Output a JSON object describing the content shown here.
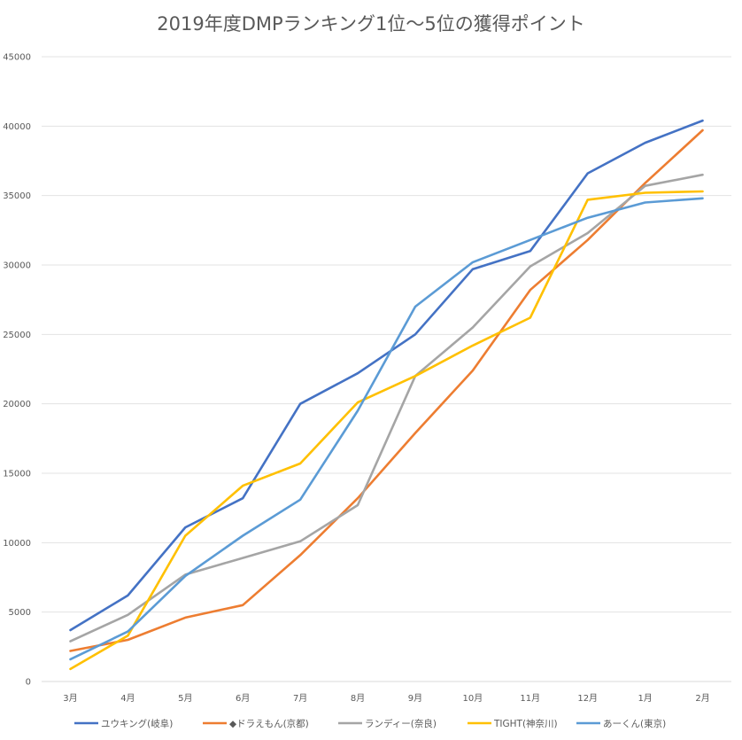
{
  "chart_data": {
    "type": "line",
    "title": "2019年度DMPランキング1位〜5位の獲得ポイント",
    "xlabel": "",
    "ylabel": "",
    "categories": [
      "3月",
      "4月",
      "5月",
      "6月",
      "7月",
      "8月",
      "9月",
      "10月",
      "11月",
      "12月",
      "1月",
      "2月"
    ],
    "ylim": [
      0,
      45000
    ],
    "yticks": [
      "0",
      "5000",
      "10000",
      "15000",
      "20000",
      "25000",
      "30000",
      "35000",
      "40000",
      "45000"
    ],
    "grid": true,
    "legend_position": "bottom",
    "series": [
      {
        "name": "ユウキング(岐阜)",
        "color": "#4472C4",
        "values": [
          3700,
          6200,
          11100,
          13200,
          20000,
          22200,
          25000,
          29700,
          31000,
          36600,
          38800,
          40400
        ]
      },
      {
        "name": "◆ドラえもん(京都)",
        "color": "#ED7D31",
        "values": [
          2200,
          3000,
          4600,
          5500,
          9100,
          13200,
          17900,
          22400,
          28200,
          31800,
          35900,
          39700
        ]
      },
      {
        "name": "ランディー(奈良)",
        "color": "#A5A5A5",
        "values": [
          2900,
          4800,
          7700,
          8900,
          10100,
          12700,
          22000,
          25500,
          29900,
          32300,
          35700,
          36500
        ]
      },
      {
        "name": "TIGHT(神奈川)",
        "color": "#FFC000",
        "values": [
          900,
          3300,
          10500,
          14100,
          15700,
          20100,
          22000,
          24200,
          26200,
          34700,
          35200,
          35300
        ]
      },
      {
        "name": "あーくん(東京)",
        "color": "#5B9BD5",
        "values": [
          1600,
          3600,
          7600,
          10500,
          13100,
          19500,
          27000,
          30200,
          31800,
          33400,
          34500,
          34800
        ]
      }
    ]
  }
}
